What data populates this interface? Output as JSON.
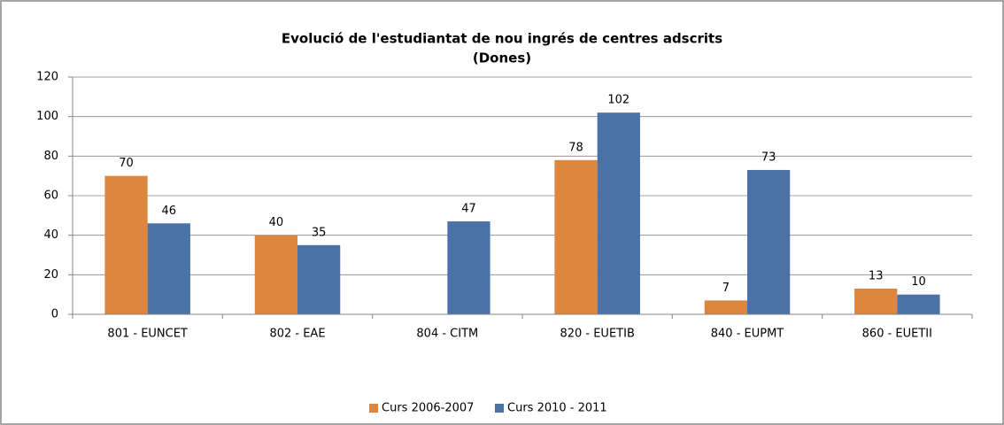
{
  "chart_data": {
    "type": "bar",
    "title": "Evolució de l'estudiantat de nou ingrés de centres adscrits",
    "subtitle": "(Dones)",
    "categories": [
      "801 - EUNCET",
      "802 - EAE",
      "804 - CITM",
      "820 - EUETIB",
      "840 - EUPMT",
      "860 - EUETII"
    ],
    "series": [
      {
        "name": "Curs 2006-2007",
        "color": "#dd8640",
        "values": [
          70,
          40,
          null,
          78,
          7,
          13
        ]
      },
      {
        "name": "Curs 2010 - 2011",
        "color": "#4a72a6",
        "values": [
          46,
          35,
          47,
          102,
          73,
          10
        ]
      }
    ],
    "ylim": [
      0,
      120
    ],
    "yticks": [
      0,
      20,
      40,
      60,
      80,
      100,
      120
    ],
    "grid": true,
    "legend": "bottom"
  }
}
